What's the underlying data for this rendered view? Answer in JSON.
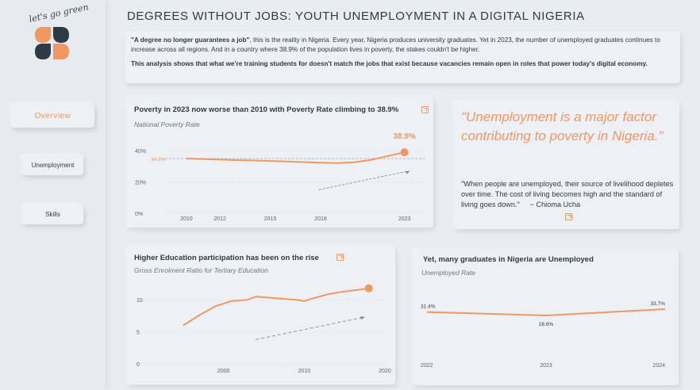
{
  "brand": {
    "logo_text": "let's go green"
  },
  "nav": [
    {
      "label": "Overview"
    },
    {
      "label": "Unemployment"
    },
    {
      "label": "Skills"
    }
  ],
  "title": "DEGREES WITHOUT JOBS: YOUTH UNEMPLOYMENT IN A DIGITAL NIGERIA",
  "intro": {
    "lead_bold": "\"A degree no longer guarantees a job\"",
    "lead_rest": ", this is the reality in Nigeria. Every year, Nigeria produces university graduates. Yet in 2023, the number of unemployed graduates continues to increase across all regions. And in a country where 38.9% of the population lives in poverty, the stakes couldn't be higher.",
    "analysis": "This analysis shows that what we're training students for doesn't match the jobs that exist because vacancies remain open in roles that power today's digital economy."
  },
  "quote": {
    "headline": "\"Unemployment is a major factor contributing to poverty in Nigeria.\"",
    "body": "\"When people are unemployed, their source of livelihood depletes over time. The cost of living becomes high and the standard of living goes down.\"",
    "author": "~ Chioma  Ucha"
  },
  "accent_color": "#ef9862",
  "chart_data": [
    {
      "type": "line",
      "title": "Poverty in 2023 now worse than 2010 with Poverty Rate climbing to 38.9%",
      "subtitle": "National Poverty Rate",
      "x": [
        2010,
        2011,
        2012,
        2013,
        2014,
        2015,
        2016,
        2017,
        2018,
        2019,
        2020,
        2021,
        2022,
        2023
      ],
      "values": [
        34.9,
        34.6,
        34.2,
        33.9,
        33.6,
        33.3,
        33.0,
        32.6,
        32.2,
        32.0,
        32.5,
        34.0,
        36.5,
        38.9
      ],
      "xticks": [
        "2010",
        "2012",
        "2015",
        "2018",
        "2023"
      ],
      "yticks": [
        "0%",
        "20%",
        "40%"
      ],
      "ylim": [
        0,
        45
      ],
      "start_label": "34.9%",
      "end_label": "38.9%"
    },
    {
      "type": "line",
      "title": "Higher Education participation has been on the rise",
      "subtitle": "Gross Enrolment Ratio for Tertiary Education",
      "x": [
        1995,
        1997,
        1999,
        2001,
        2003,
        2004,
        2005,
        2007,
        2009,
        2010,
        2011,
        2013,
        2015,
        2017,
        2018
      ],
      "values": [
        6.0,
        7.6,
        9.0,
        9.8,
        10.0,
        10.5,
        10.4,
        10.2,
        10.0,
        9.8,
        10.2,
        10.9,
        11.3,
        11.6,
        11.8
      ],
      "xticks": [
        "2000",
        "2010",
        "2020"
      ],
      "yticks": [
        "0",
        "5",
        "10"
      ],
      "ylim": [
        0,
        13
      ],
      "xlim": [
        1990,
        2020
      ]
    },
    {
      "type": "line",
      "title": "Yet, many graduates in Nigeria are Unemployed",
      "subtitle": "Unemployed Rate",
      "x": [
        2022,
        2023,
        2024
      ],
      "values": [
        31.4,
        28.6,
        33.7
      ],
      "xticks": [
        "2022",
        "2023",
        "2024"
      ],
      "value_labels": [
        "31.4%",
        "28.6%",
        "33.7%"
      ]
    }
  ]
}
